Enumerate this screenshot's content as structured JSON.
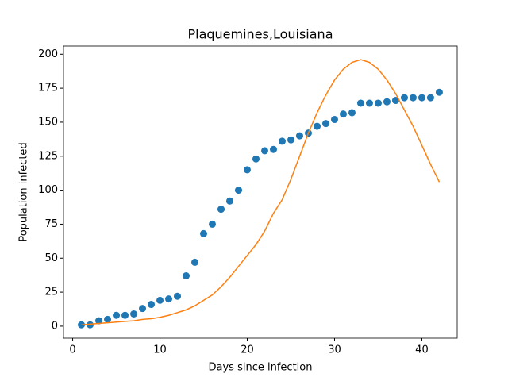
{
  "chart_data": {
    "type": "scatter",
    "title": "Plaquemines,Louisiana",
    "x_label": "Days since infection",
    "y_label": "Population infected",
    "x": [
      1,
      2,
      3,
      4,
      5,
      6,
      7,
      8,
      9,
      10,
      11,
      12,
      13,
      14,
      15,
      16,
      17,
      18,
      19,
      20,
      21,
      22,
      23,
      24,
      25,
      26,
      27,
      28,
      29,
      30,
      31,
      32,
      33,
      34,
      35,
      36,
      37,
      38,
      39,
      40,
      41,
      42
    ],
    "series": [
      {
        "type": "scatter",
        "color": "#1f77b4",
        "values": [
          1,
          1,
          4,
          5,
          8,
          8,
          9,
          13,
          16,
          19,
          20,
          22,
          37,
          47,
          68,
          75,
          86,
          92,
          100,
          115,
          123,
          129,
          130,
          136,
          137,
          140,
          142,
          147,
          149,
          152,
          156,
          157,
          164,
          164,
          164,
          165,
          166,
          168,
          168,
          168,
          168,
          172
        ]
      },
      {
        "type": "line",
        "color": "#ff7f0e",
        "values": [
          1,
          1.5,
          2,
          2.5,
          3,
          3.5,
          4,
          5,
          5.5,
          6.5,
          8,
          10,
          12,
          15,
          19,
          23,
          29,
          36,
          44,
          52,
          60,
          70,
          83,
          93,
          108,
          125,
          142,
          157,
          170,
          181,
          189,
          194,
          196,
          194,
          189,
          181,
          171,
          159,
          147,
          133,
          119,
          106
        ]
      }
    ],
    "xlim": [
      -1.05,
      44.05
    ],
    "xticks": [
      0,
      10,
      20,
      30,
      40
    ],
    "ylim": [
      -8.8,
      206
    ],
    "yticks": [
      0,
      25,
      50,
      75,
      100,
      125,
      150,
      175,
      200
    ]
  }
}
